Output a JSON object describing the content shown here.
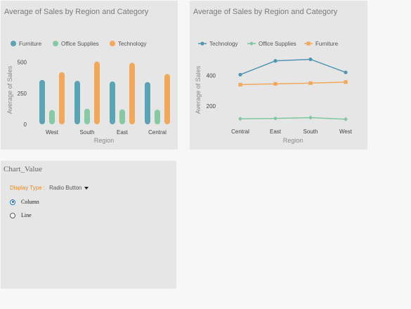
{
  "chart_data": [
    {
      "type": "bar",
      "title": "Average of Sales by Region and Category",
      "xlabel": "Region",
      "ylabel": "Average of Sales",
      "categories": [
        "West",
        "South",
        "East",
        "Central"
      ],
      "series": [
        {
          "name": "Furniture",
          "color": "#5ba4b5",
          "values": [
            357,
            350,
            345,
            340
          ]
        },
        {
          "name": "Office Supplies",
          "color": "#86c9a3",
          "values": [
            115,
            125,
            120,
            118
          ]
        },
        {
          "name": "Technology",
          "color": "#f2a85a",
          "values": [
            420,
            505,
            495,
            405
          ]
        }
      ],
      "yticks": [
        "0",
        "250",
        "500"
      ],
      "ylim": [
        0,
        520
      ],
      "legend": "top"
    },
    {
      "type": "line",
      "title": "Average of Sales by Region and Category",
      "xlabel": "Region",
      "ylabel": "Average of Sales",
      "categories": [
        "Central",
        "East",
        "South",
        "West"
      ],
      "series": [
        {
          "name": "Technology",
          "color": "#4f96b3",
          "marker": "circle",
          "values": [
            405,
            495,
            505,
            420
          ]
        },
        {
          "name": "Office Supplies",
          "color": "#80c79f",
          "marker": "diamond",
          "values": [
            118,
            120,
            125,
            115
          ]
        },
        {
          "name": "Furniture",
          "color": "#f2a85a",
          "marker": "square",
          "values": [
            340,
            345,
            350,
            357
          ]
        }
      ],
      "yticks": [
        "200",
        "400"
      ],
      "ylim": [
        100,
        530
      ],
      "legend": "top"
    }
  ],
  "control": {
    "title": "Chart_Value",
    "display_label": "Display Type :",
    "display_value": "Radio Button",
    "options": [
      {
        "label": "Column",
        "checked": true
      },
      {
        "label": "Line",
        "checked": false
      }
    ]
  }
}
